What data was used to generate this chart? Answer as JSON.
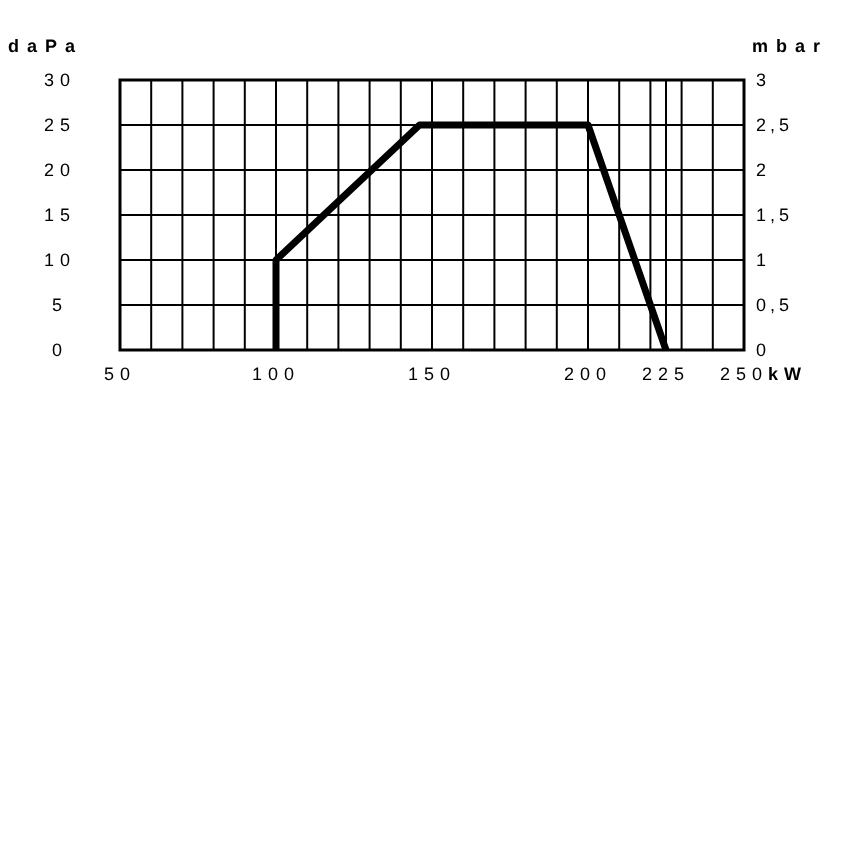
{
  "chart_data": {
    "type": "line",
    "xlabel": "kW",
    "ylabel": "daPa",
    "y2label": "mbar",
    "series": [
      {
        "color": "#000000",
        "x": [
          100,
          100,
          146,
          200,
          225
        ],
        "values": [
          0,
          10,
          25,
          25,
          0
        ]
      }
    ],
    "xlim": [
      50,
      250
    ],
    "xticks": [
      50,
      {
        "value": 60,
        "label": null
      },
      {
        "value": 70,
        "label": null
      },
      {
        "value": 80,
        "label": null
      },
      {
        "value": 90,
        "label": null
      },
      100,
      {
        "value": 110,
        "label": null
      },
      {
        "value": 120,
        "label": null
      },
      {
        "value": 130,
        "label": null
      },
      {
        "value": 140,
        "label": null
      },
      150,
      {
        "value": 160,
        "label": null
      },
      {
        "value": 170,
        "label": null
      },
      {
        "value": 180,
        "label": null
      },
      {
        "value": 190,
        "label": null
      },
      200,
      {
        "value": 210,
        "label": null
      },
      {
        "value": 220,
        "label": null
      },
      225,
      {
        "value": 230,
        "label": null
      },
      {
        "value": 240,
        "label": null
      },
      250
    ],
    "ylim": [
      0,
      30
    ],
    "yticks": [
      0,
      5,
      10,
      15,
      20,
      25,
      30
    ],
    "y2lim": [
      0,
      3
    ],
    "y2ticks": [
      0,
      {
        "value": 0.5,
        "label": "0,5"
      },
      1,
      {
        "value": 1.5,
        "label": "1,5"
      },
      2,
      {
        "value": 2.5,
        "label": "2,5"
      },
      3
    ],
    "grid": true,
    "marker": "none",
    "line_style": "solid"
  }
}
